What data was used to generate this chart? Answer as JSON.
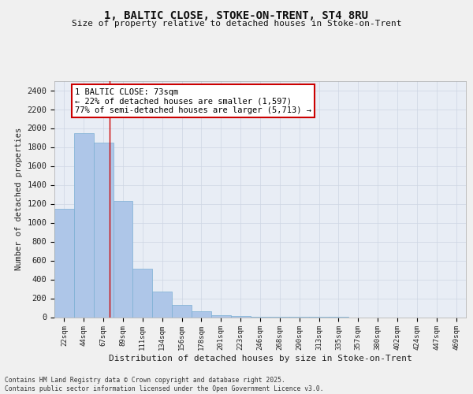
{
  "title": "1, BALTIC CLOSE, STOKE-ON-TRENT, ST4 8RU",
  "subtitle": "Size of property relative to detached houses in Stoke-on-Trent",
  "xlabel": "Distribution of detached houses by size in Stoke-on-Trent",
  "ylabel": "Number of detached properties",
  "bar_color": "#aec6e8",
  "bar_edge_color": "#7bafd4",
  "property_line_color": "#cc0000",
  "property_value": 73,
  "annotation_line1": "1 BALTIC CLOSE: 73sqm",
  "annotation_line2": "← 22% of detached houses are smaller (1,597)",
  "annotation_line3": "77% of semi-detached houses are larger (5,713) →",
  "annotation_box_color": "#cc0000",
  "categories": [
    "22sqm",
    "44sqm",
    "67sqm",
    "89sqm",
    "111sqm",
    "134sqm",
    "156sqm",
    "178sqm",
    "201sqm",
    "223sqm",
    "246sqm",
    "268sqm",
    "290sqm",
    "313sqm",
    "335sqm",
    "357sqm",
    "380sqm",
    "402sqm",
    "424sqm",
    "447sqm",
    "469sqm"
  ],
  "bin_edges": [
    11,
    33,
    55,
    77,
    99,
    121,
    143,
    165,
    187,
    209,
    231,
    253,
    275,
    297,
    319,
    341,
    363,
    385,
    407,
    429,
    451,
    473
  ],
  "values": [
    1150,
    1950,
    1850,
    1230,
    510,
    270,
    130,
    60,
    20,
    10,
    5,
    3,
    2,
    1,
    1,
    0,
    0,
    0,
    0,
    0,
    0
  ],
  "ylim": [
    0,
    2500
  ],
  "yticks": [
    0,
    200,
    400,
    600,
    800,
    1000,
    1200,
    1400,
    1600,
    1800,
    2000,
    2200,
    2400
  ],
  "grid_color": "#cdd5e3",
  "background_color": "#e8edf5",
  "fig_background": "#f0f0f0",
  "footer_line1": "Contains HM Land Registry data © Crown copyright and database right 2025.",
  "footer_line2": "Contains public sector information licensed under the Open Government Licence v3.0."
}
